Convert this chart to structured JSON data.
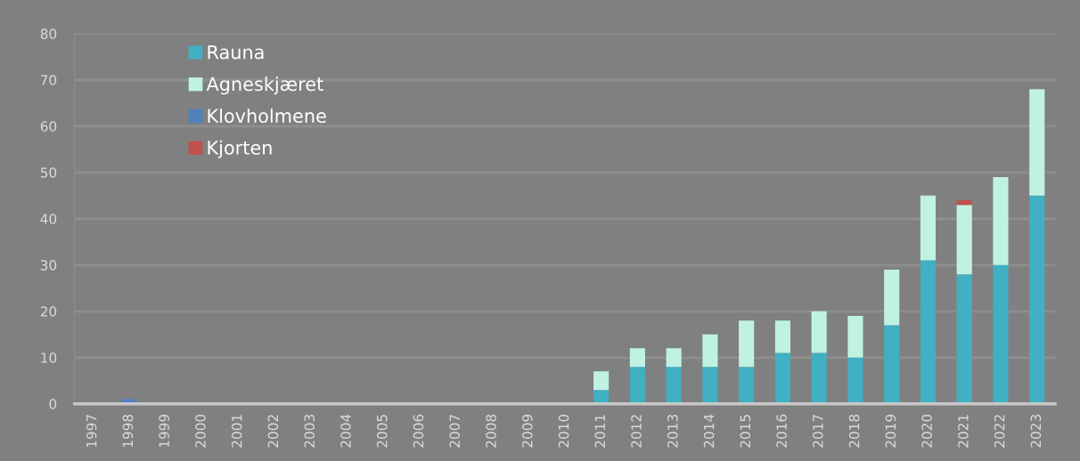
{
  "chart_data": {
    "type": "bar",
    "stacked": true,
    "categories": [
      "1997",
      "1998",
      "1999",
      "2000",
      "2001",
      "2002",
      "2003",
      "2004",
      "2005",
      "2006",
      "2007",
      "2008",
      "2009",
      "2010",
      "2011",
      "2012",
      "2013",
      "2014",
      "2015",
      "2016",
      "2017",
      "2018",
      "2019",
      "2020",
      "2021",
      "2022",
      "2023"
    ],
    "series": [
      {
        "name": "Rauna",
        "color": "#40b0c2",
        "values": [
          0,
          0,
          0,
          0,
          0,
          0,
          0,
          0,
          0,
          0,
          0,
          0,
          0,
          0,
          3,
          8,
          8,
          8,
          8,
          11,
          11,
          10,
          17,
          31,
          28,
          30,
          45
        ]
      },
      {
        "name": "Agneskjæret",
        "color": "#c0f2e4",
        "values": [
          0,
          0,
          0,
          0,
          0,
          0,
          0,
          0,
          0,
          0,
          0,
          0,
          0,
          0,
          4,
          4,
          4,
          7,
          10,
          7,
          9,
          9,
          12,
          14,
          15,
          19,
          23
        ]
      },
      {
        "name": "Klovholmene",
        "color": "#4f81bd",
        "values": [
          0,
          1,
          0,
          0,
          0,
          0,
          0,
          0,
          0,
          0,
          0,
          0,
          0,
          0,
          0,
          0,
          0,
          0,
          0,
          0,
          0,
          0,
          0,
          0,
          0,
          0,
          0
        ]
      },
      {
        "name": "Kjorten",
        "color": "#c0504d",
        "values": [
          0,
          0,
          0,
          0,
          0,
          0,
          0,
          0,
          0,
          0,
          0,
          0,
          0,
          0,
          0,
          0,
          0,
          0,
          0,
          0,
          0,
          0,
          0,
          0,
          1,
          0,
          0
        ]
      }
    ],
    "ylim": [
      0,
      80
    ],
    "yticks": [
      0,
      10,
      20,
      30,
      40,
      50,
      60,
      70,
      80
    ],
    "grid": "y",
    "legend": "top left"
  }
}
